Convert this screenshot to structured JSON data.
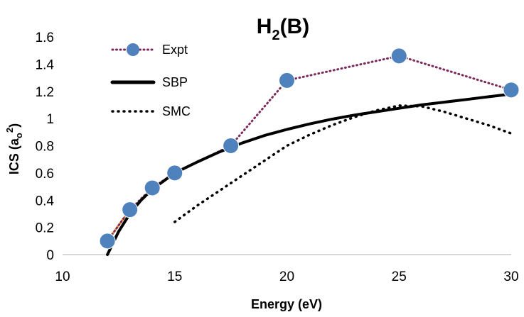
{
  "chart_data": {
    "type": "line",
    "title": "H",
    "title_subscript": "2",
    "title_suffix": "(B)",
    "xlabel": "Energy (eV)",
    "ylabel_main": "ICS (a",
    "ylabel_sub": "o",
    "ylabel_sup": "2",
    "ylabel_close": ")",
    "xlim": [
      10,
      30
    ],
    "ylim": [
      0,
      1.6
    ],
    "xticks": [
      10,
      15,
      20,
      25,
      30
    ],
    "yticks": [
      0,
      0.2,
      0.4,
      0.6,
      0.8,
      1,
      1.2,
      1.4,
      1.6
    ],
    "xtick_labels": [
      "10",
      "15",
      "20",
      "25",
      "30"
    ],
    "ytick_labels": [
      "0",
      "0.2",
      "0.4",
      "0.6",
      "0.8",
      "1",
      "1.2",
      "1.4",
      "1.6"
    ],
    "legend_position": "top-left",
    "series": [
      {
        "name": "Expt",
        "style": "dotted-markers",
        "color": "#7a2a5a",
        "marker_color": "#4f81bd",
        "x": [
          12,
          13,
          14,
          15,
          17.5,
          20,
          25,
          30
        ],
        "y": [
          0.1,
          0.33,
          0.49,
          0.6,
          0.8,
          1.28,
          1.46,
          1.21
        ]
      },
      {
        "name": "SBP",
        "style": "solid",
        "color": "#000000",
        "x": [
          12,
          12.5,
          13,
          13.5,
          14,
          15,
          16,
          17,
          18,
          19,
          20,
          21,
          22,
          23,
          24,
          25,
          26,
          27,
          28,
          29,
          30
        ],
        "y": [
          0,
          0.17,
          0.3,
          0.4,
          0.48,
          0.6,
          0.68,
          0.755,
          0.82,
          0.875,
          0.92,
          0.96,
          0.995,
          1.025,
          1.05,
          1.075,
          1.1,
          1.12,
          1.14,
          1.16,
          1.18
        ]
      },
      {
        "name": "SMC",
        "style": "dotted",
        "color": "#000000",
        "x": [
          15,
          16,
          17,
          18,
          19,
          20,
          21,
          22,
          23,
          24,
          25,
          26,
          27,
          28,
          29,
          30
        ],
        "y": [
          0.24,
          0.36,
          0.47,
          0.58,
          0.69,
          0.8,
          0.88,
          0.95,
          1.01,
          1.06,
          1.095,
          1.09,
          1.05,
          1.0,
          0.95,
          0.89
        ]
      }
    ],
    "extra_segment": {
      "name": "",
      "color": "#e8922a",
      "x": [
        12,
        13
      ],
      "y": [
        0.1,
        0.33
      ]
    }
  }
}
